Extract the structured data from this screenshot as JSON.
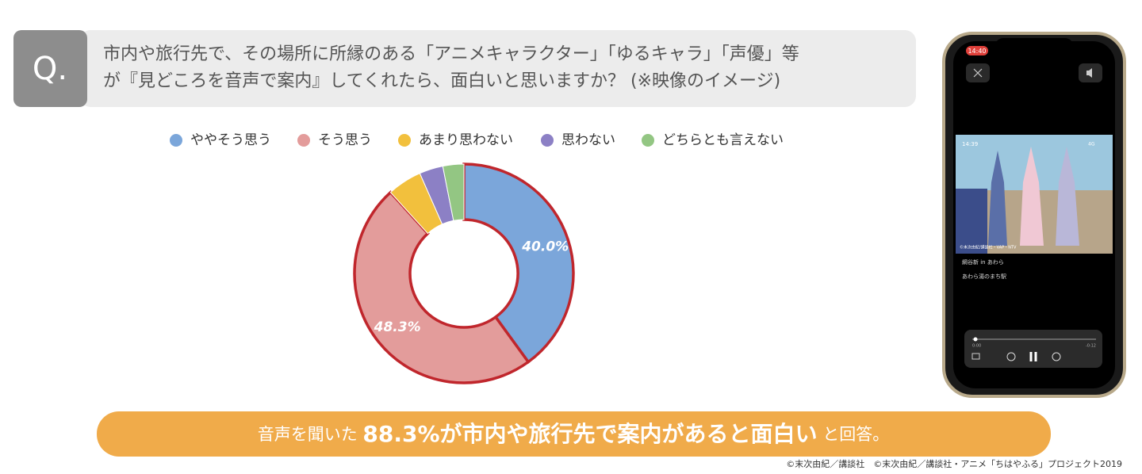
{
  "question": {
    "label": "Q.",
    "lines": [
      "市内や旅行先で、その場所に所縁のある「アニメキャラクター」「ゆるキャラ」「声優」等",
      "が『見どころを音声で案内』してくれたら、面白いと思いますか？ (※映像のイメージ)"
    ]
  },
  "chart_data": {
    "type": "pie",
    "categories": [
      "ややそう思う",
      "そう思う",
      "あまり思わない",
      "思わない",
      "どちらとも言えない"
    ],
    "values": [
      40.0,
      48.3,
      5.1,
      3.5,
      3.1
    ],
    "value_labels": [
      "40.0%",
      "48.3%",
      null,
      null,
      null
    ],
    "colors": [
      "#7ba6da",
      "#e39c9b",
      "#f2c03d",
      "#8c80c5",
      "#93c683"
    ],
    "highlight": [
      true,
      true,
      false,
      false,
      false
    ],
    "highlight_color": "#c0262c",
    "legend": "top"
  },
  "banner": {
    "before": "音声を聞いた",
    "emphasis": "88.3%が市内や旅行先で案内があると面白い",
    "after": "と回答。"
  },
  "credit": "©末次由紀／講談社　©末次由紀／講談社・アニメ「ちはやふる」プロジェクト2019",
  "phone": {
    "status_time": "14:40",
    "video_time": "14:39",
    "network": "4G",
    "video_credit": "©末次由紀/講談社・VAP・NTV",
    "title": "綱谷新 in あわら",
    "subtitle": "あわら湯のまち駅",
    "elapsed": "0:00",
    "remaining": "-0:12"
  }
}
